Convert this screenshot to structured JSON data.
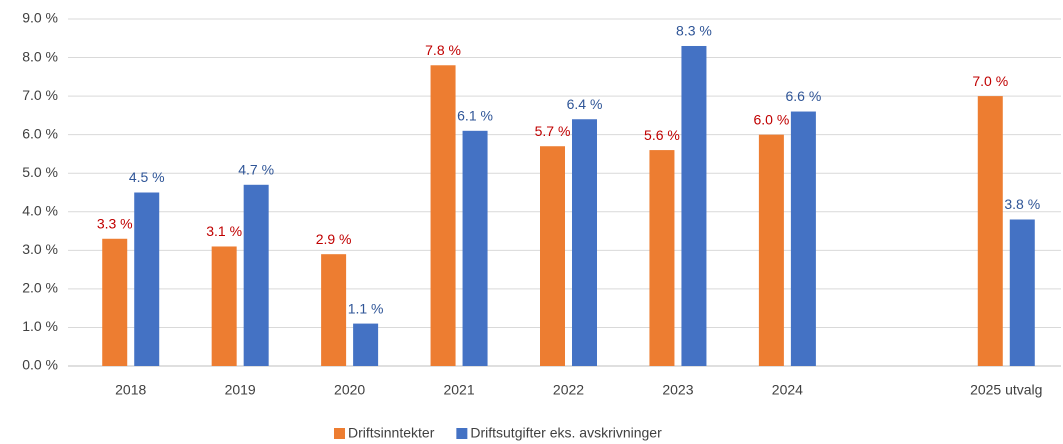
{
  "chart_data": {
    "type": "bar",
    "categories": [
      "2018",
      "2019",
      "2020",
      "2021",
      "2022",
      "2023",
      "2024",
      null,
      "2025 utvalg"
    ],
    "series": [
      {
        "name": "Driftsinntekter",
        "color": "#ed7d31",
        "label_color": "#c00000",
        "values": [
          3.3,
          3.1,
          2.9,
          7.8,
          5.7,
          5.6,
          6.0,
          null,
          7.0
        ],
        "value_labels": [
          "3.3 %",
          "3.1 %",
          "2.9 %",
          "7.8 %",
          "5.7 %",
          "5.6 %",
          "6.0 %",
          null,
          "7.0 %"
        ]
      },
      {
        "name": "Driftsutgifter eks. avskrivninger",
        "color": "#4472c4",
        "label_color": "#2f5597",
        "values": [
          4.5,
          4.7,
          1.1,
          6.1,
          6.4,
          8.3,
          6.6,
          null,
          3.8
        ],
        "value_labels": [
          "4.5 %",
          "4.7 %",
          "1.1 %",
          "6.1 %",
          "6.4 %",
          "8.3 %",
          "6.6 %",
          null,
          "3.8 %"
        ]
      }
    ],
    "ylim": [
      0,
      9
    ],
    "yticks": [
      {
        "value": 0,
        "label": "0.0 %"
      },
      {
        "value": 1,
        "label": "1.0 %"
      },
      {
        "value": 2,
        "label": "2.0 %"
      },
      {
        "value": 3,
        "label": "3.0 %"
      },
      {
        "value": 4,
        "label": "4.0 %"
      },
      {
        "value": 5,
        "label": "5.0 %"
      },
      {
        "value": 6,
        "label": "6.0 %"
      },
      {
        "value": 7,
        "label": "7.0 %"
      },
      {
        "value": 8,
        "label": "8.0 %"
      },
      {
        "value": 9,
        "label": "9.0 %"
      }
    ],
    "grid": true,
    "legend": "bottom"
  }
}
